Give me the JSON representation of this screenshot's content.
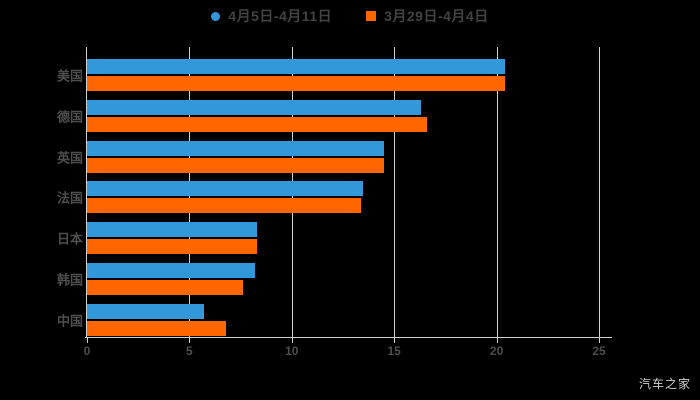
{
  "page": {
    "background": "#000000",
    "watermark": "汽车之家"
  },
  "legend": [
    {
      "label": "4月5日-4月11日",
      "color": "#3398da",
      "marker": "circle"
    },
    {
      "label": "3月29日-4月4日",
      "color": "#ff6600",
      "marker": "square"
    }
  ],
  "chart_data": {
    "type": "bar",
    "orientation": "horizontal",
    "title": "",
    "xlabel": "",
    "ylabel": "",
    "categories": [
      "美国",
      "德国",
      "英国",
      "法国",
      "日本",
      "韩国",
      "中国"
    ],
    "series": [
      {
        "name": "4月5日-4月11日",
        "color": "#3398da",
        "values": [
          20.4,
          16.3,
          14.5,
          13.5,
          8.3,
          8.2,
          5.7
        ]
      },
      {
        "name": "3月29日-4月4日",
        "color": "#ff6600",
        "values": [
          20.4,
          16.6,
          14.5,
          13.4,
          8.3,
          7.6,
          6.8
        ]
      }
    ],
    "xlim": [
      0,
      25
    ],
    "x_ticks": [
      0,
      5,
      10,
      15,
      20,
      25
    ],
    "x_tick_labels": [
      "0",
      "5",
      "10",
      "15",
      "20",
      "25"
    ],
    "grid": true,
    "legend_position": "top",
    "colors": {
      "grid_line": "#cfcfcf",
      "axis_line": "#cfcfcf",
      "tick_label": "#4d4d4d",
      "category_label": "#4d4d4d",
      "legend_text": "#424242"
    }
  }
}
